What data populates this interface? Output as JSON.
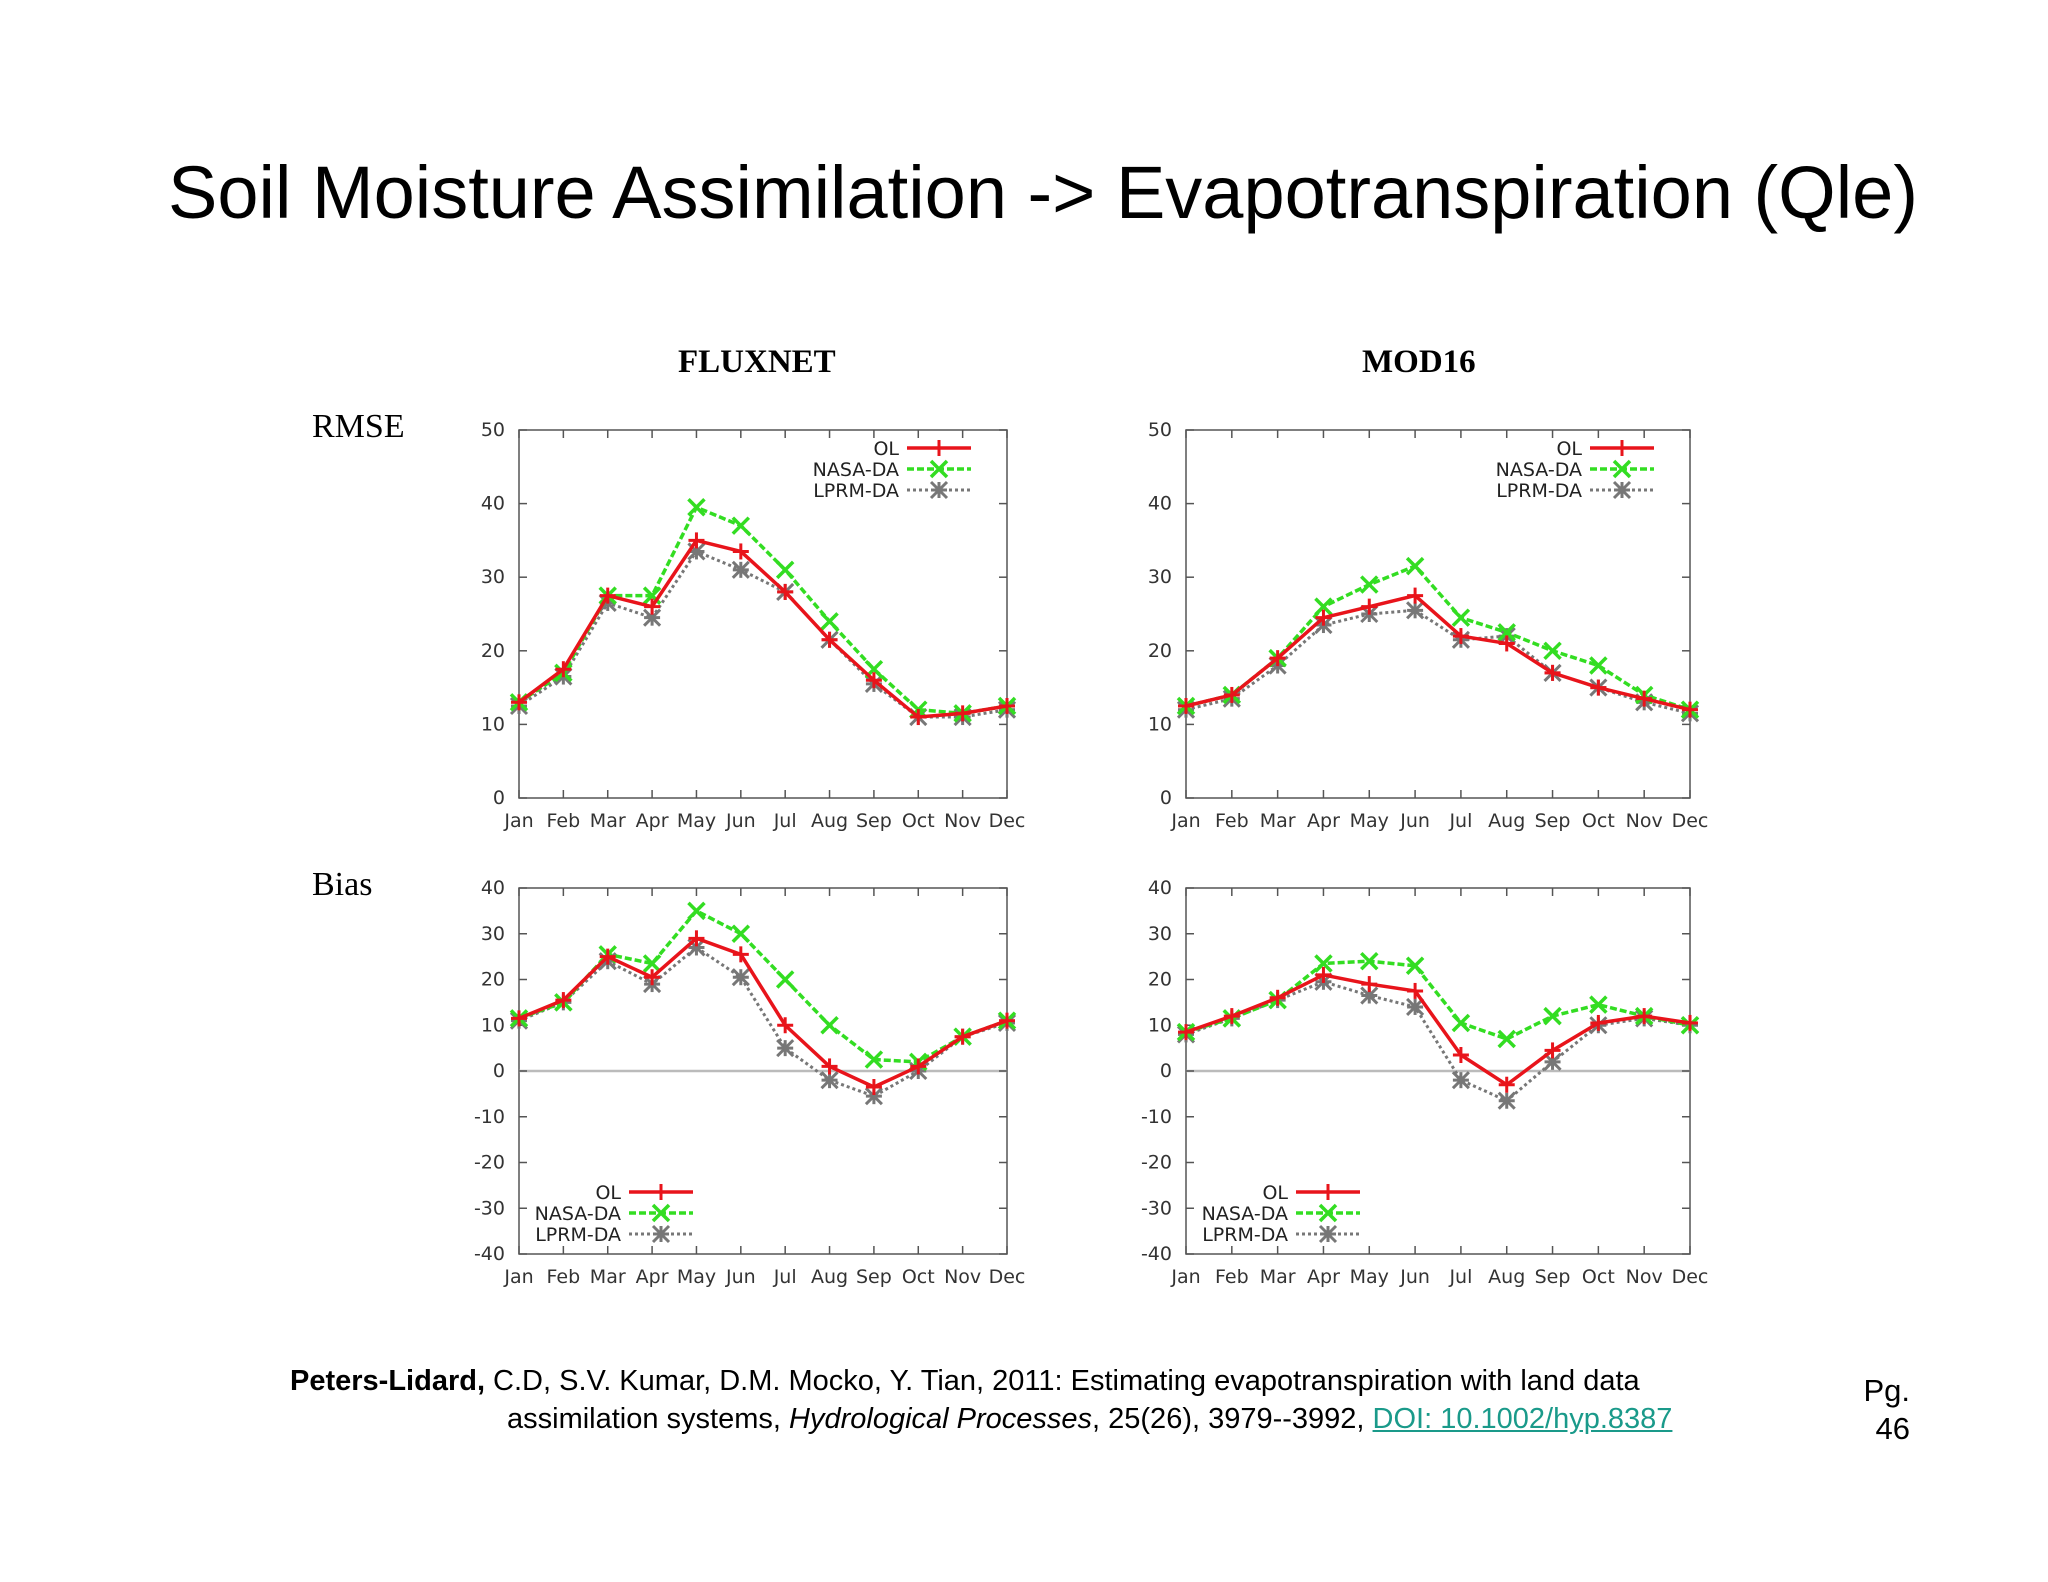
{
  "slide": {
    "title": "Soil Moisture Assimilation -> Evapotranspiration (Qle)",
    "col_headers": [
      "FLUXNET",
      "MOD16"
    ],
    "row_headers": [
      "RMSE",
      "Bias"
    ],
    "citation": {
      "author": "Peters-Lidard,",
      "rest1": " C.D, S.V. Kumar, D.M. Mocko, Y. Tian, 2011:   Estimating evapotranspiration with land data",
      "line2_pre": "assimilation systems, ",
      "journal": "Hydrological Processes",
      "line2_post": ", 25(26), 3979--3992, ",
      "doi": "DOI: 10.1002/hyp.8387"
    },
    "page_label": "Pg.",
    "page_number": "46"
  },
  "colors": {
    "OL": "#e8141b",
    "NASA-DA": "#33dd22",
    "LPRM-DA": "#777777"
  },
  "chart_data": [
    {
      "type": "line",
      "name": "fluxnet-rmse",
      "categories": [
        "Jan",
        "Feb",
        "Mar",
        "Apr",
        "May",
        "Jun",
        "Jul",
        "Aug",
        "Sep",
        "Oct",
        "Nov",
        "Dec"
      ],
      "ylim": [
        0,
        50
      ],
      "yticks": [
        0,
        10,
        20,
        30,
        40,
        50
      ],
      "legend": "top-right",
      "zero_line": false,
      "series": [
        {
          "name": "OL",
          "values": [
            13,
            17.5,
            27.5,
            26,
            35,
            33.5,
            28,
            21.5,
            16,
            11,
            11.5,
            12.5
          ]
        },
        {
          "name": "NASA-DA",
          "values": [
            13,
            17,
            27.5,
            27.5,
            39.5,
            37,
            31,
            24,
            17.5,
            12,
            11.5,
            12.5
          ]
        },
        {
          "name": "LPRM-DA",
          "values": [
            12.5,
            16.5,
            26.5,
            24.5,
            33.5,
            31,
            28,
            21.5,
            15.5,
            11,
            11,
            12
          ]
        }
      ]
    },
    {
      "type": "line",
      "name": "mod16-rmse",
      "categories": [
        "Jan",
        "Feb",
        "Mar",
        "Apr",
        "May",
        "Jun",
        "Jul",
        "Aug",
        "Sep",
        "Oct",
        "Nov",
        "Dec"
      ],
      "ylim": [
        0,
        50
      ],
      "yticks": [
        0,
        10,
        20,
        30,
        40,
        50
      ],
      "legend": "top-right",
      "zero_line": false,
      "series": [
        {
          "name": "OL",
          "values": [
            12.5,
            14,
            19,
            24.5,
            26,
            27.5,
            22,
            21,
            17,
            15,
            13.5,
            12
          ]
        },
        {
          "name": "NASA-DA",
          "values": [
            12.5,
            14,
            19,
            26,
            29,
            31.5,
            24.5,
            22.5,
            20,
            18,
            14,
            12
          ]
        },
        {
          "name": "LPRM-DA",
          "values": [
            12,
            13.5,
            18,
            23.5,
            25,
            25.5,
            21.5,
            22,
            17,
            15,
            13,
            11.5
          ]
        }
      ]
    },
    {
      "type": "line",
      "name": "fluxnet-bias",
      "categories": [
        "Jan",
        "Feb",
        "Mar",
        "Apr",
        "May",
        "Jun",
        "Jul",
        "Aug",
        "Sep",
        "Oct",
        "Nov",
        "Dec"
      ],
      "ylim": [
        -40,
        40
      ],
      "yticks": [
        -40,
        -30,
        -20,
        -10,
        0,
        10,
        20,
        30,
        40
      ],
      "legend": "bottom-left",
      "zero_line": true,
      "series": [
        {
          "name": "OL",
          "values": [
            11.5,
            15.5,
            25,
            20.5,
            29,
            25.5,
            10,
            1,
            -3.5,
            1,
            7.5,
            11
          ]
        },
        {
          "name": "NASA-DA",
          "values": [
            11.5,
            15,
            25.5,
            23.5,
            35,
            30,
            20,
            10,
            2.5,
            2,
            7.5,
            11
          ]
        },
        {
          "name": "LPRM-DA",
          "values": [
            11,
            15,
            24,
            19,
            27,
            20.5,
            5,
            -2,
            -5.5,
            0,
            7.5,
            10.5
          ]
        }
      ]
    },
    {
      "type": "line",
      "name": "mod16-bias",
      "categories": [
        "Jan",
        "Feb",
        "Mar",
        "Apr",
        "May",
        "Jun",
        "Jul",
        "Aug",
        "Sep",
        "Oct",
        "Nov",
        "Dec"
      ],
      "ylim": [
        -40,
        40
      ],
      "yticks": [
        -40,
        -30,
        -20,
        -10,
        0,
        10,
        20,
        30,
        40
      ],
      "legend": "bottom-left",
      "zero_line": true,
      "series": [
        {
          "name": "OL",
          "values": [
            8.5,
            12,
            16,
            21,
            19,
            17.5,
            3.5,
            -3,
            4.5,
            10.5,
            12,
            10.5
          ]
        },
        {
          "name": "NASA-DA",
          "values": [
            8.5,
            11.5,
            15.5,
            23.5,
            24,
            23,
            10.5,
            7,
            12,
            14.5,
            12,
            10
          ]
        },
        {
          "name": "LPRM-DA",
          "values": [
            8,
            11.5,
            15.5,
            19.5,
            16.5,
            14,
            -2,
            -6.5,
            2,
            10,
            11.5,
            10
          ]
        }
      ]
    }
  ]
}
